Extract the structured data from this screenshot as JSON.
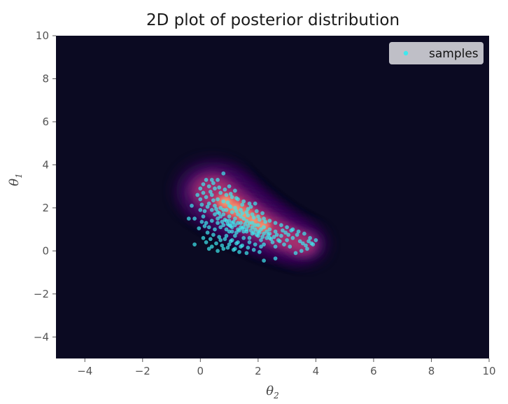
{
  "chart_data": {
    "type": "scatter",
    "title": "2D plot of posterior distribution",
    "xlabel": "θ",
    "xlabel_sub": "2",
    "ylabel": "θ",
    "ylabel_sub": "1",
    "xlim": [
      -5,
      10
    ],
    "ylim": [
      -5,
      10
    ],
    "xticks": [
      -4,
      -2,
      0,
      2,
      4,
      6,
      8,
      10
    ],
    "yticks": [
      -4,
      -2,
      0,
      2,
      4,
      6,
      8,
      10
    ],
    "xtick_labels": [
      "−4",
      "−2",
      "0",
      "2",
      "4",
      "6",
      "8",
      "10"
    ],
    "ytick_labels": [
      "−4",
      "−2",
      "0",
      "2",
      "4",
      "6",
      "8",
      "10"
    ],
    "grid": false,
    "legend_position": "top-right",
    "background_color": "#0b0a22",
    "series": [
      {
        "name": "samples",
        "color": "#3ee8ee",
        "points": [
          [
            0.2,
            3.3
          ],
          [
            0.4,
            3.3
          ],
          [
            0.6,
            3.3
          ],
          [
            0.8,
            3.6
          ],
          [
            1.0,
            3.0
          ],
          [
            1.2,
            2.8
          ],
          [
            0.3,
            3.0
          ],
          [
            0.5,
            2.9
          ],
          [
            0.1,
            2.7
          ],
          [
            0.7,
            2.7
          ],
          [
            0.9,
            2.6
          ],
          [
            1.1,
            2.5
          ],
          [
            1.3,
            2.4
          ],
          [
            1.5,
            2.3
          ],
          [
            1.7,
            2.2
          ],
          [
            1.9,
            2.2
          ],
          [
            0.0,
            2.4
          ],
          [
            0.2,
            2.5
          ],
          [
            0.4,
            2.6
          ],
          [
            0.6,
            2.4
          ],
          [
            0.8,
            2.3
          ],
          [
            1.0,
            2.1
          ],
          [
            1.2,
            2.0
          ],
          [
            1.4,
            1.9
          ],
          [
            1.6,
            1.8
          ],
          [
            1.8,
            1.7
          ],
          [
            2.0,
            1.6
          ],
          [
            2.2,
            1.5
          ],
          [
            2.4,
            1.4
          ],
          [
            2.6,
            1.3
          ],
          [
            2.8,
            1.2
          ],
          [
            3.0,
            1.1
          ],
          [
            3.2,
            1.0
          ],
          [
            3.4,
            0.9
          ],
          [
            3.6,
            0.8
          ],
          [
            3.8,
            0.6
          ],
          [
            4.0,
            0.5
          ],
          [
            3.9,
            0.3
          ],
          [
            3.7,
            0.1
          ],
          [
            3.5,
            0.0
          ],
          [
            3.3,
            -0.1
          ],
          [
            -0.3,
            2.1
          ],
          [
            -0.4,
            1.5
          ],
          [
            -0.2,
            1.5
          ],
          [
            0.0,
            1.9
          ],
          [
            0.1,
            1.6
          ],
          [
            0.2,
            1.3
          ],
          [
            0.3,
            1.1
          ],
          [
            0.5,
            1.0
          ],
          [
            0.6,
            1.3
          ],
          [
            0.7,
            1.6
          ],
          [
            0.8,
            1.9
          ],
          [
            0.9,
            1.4
          ],
          [
            1.0,
            1.2
          ],
          [
            1.1,
            0.9
          ],
          [
            1.2,
            0.7
          ],
          [
            1.3,
            1.0
          ],
          [
            1.4,
            1.3
          ],
          [
            1.5,
            1.1
          ],
          [
            1.6,
            0.9
          ],
          [
            1.7,
            0.6
          ],
          [
            1.8,
            0.8
          ],
          [
            1.9,
            1.0
          ],
          [
            2.0,
            0.7
          ],
          [
            2.1,
            0.5
          ],
          [
            2.2,
            0.3
          ],
          [
            2.3,
            0.6
          ],
          [
            2.4,
            0.8
          ],
          [
            2.5,
            0.4
          ],
          [
            2.6,
            0.2
          ],
          [
            2.7,
            0.5
          ],
          [
            2.8,
            0.7
          ],
          [
            2.9,
            0.3
          ],
          [
            3.0,
            0.5
          ],
          [
            3.1,
            0.2
          ],
          [
            3.2,
            0.6
          ],
          [
            0.1,
            0.6
          ],
          [
            0.2,
            0.4
          ],
          [
            0.4,
            0.2
          ],
          [
            0.6,
            0.0
          ],
          [
            0.8,
            0.1
          ],
          [
            1.0,
            0.3
          ],
          [
            1.2,
            0.1
          ],
          [
            1.4,
            0.2
          ],
          [
            1.6,
            -0.1
          ],
          [
            -0.2,
            0.3
          ],
          [
            0.3,
            0.1
          ],
          [
            2.2,
            -0.45
          ],
          [
            2.6,
            -0.35
          ],
          [
            0.7,
            0.5
          ],
          [
            0.9,
            0.7
          ],
          [
            1.1,
            0.5
          ],
          [
            1.3,
            0.4
          ],
          [
            1.5,
            0.6
          ],
          [
            1.7,
            0.4
          ],
          [
            1.9,
            0.3
          ],
          [
            2.1,
            0.2
          ],
          [
            0.4,
            1.9
          ],
          [
            0.6,
            1.8
          ],
          [
            0.8,
            1.7
          ],
          [
            1.0,
            1.6
          ],
          [
            1.2,
            1.5
          ],
          [
            1.4,
            1.6
          ],
          [
            1.6,
            1.4
          ],
          [
            1.8,
            1.3
          ],
          [
            2.0,
            1.2
          ],
          [
            2.2,
            1.1
          ],
          [
            2.4,
            1.0
          ],
          [
            2.6,
            0.9
          ],
          [
            0.3,
            2.2
          ],
          [
            0.5,
            2.1
          ],
          [
            0.7,
            2.0
          ],
          [
            0.9,
            1.9
          ],
          [
            1.1,
            1.8
          ],
          [
            1.3,
            1.7
          ],
          [
            1.5,
            1.5
          ],
          [
            1.7,
            1.3
          ],
          [
            1.9,
            1.2
          ],
          [
            2.1,
            1.0
          ],
          [
            2.3,
            0.9
          ],
          [
            0.9,
            1.0
          ],
          [
            1.0,
            0.9
          ],
          [
            1.1,
            1.1
          ],
          [
            1.2,
            1.2
          ],
          [
            1.3,
            1.3
          ],
          [
            1.4,
            1.1
          ],
          [
            1.5,
            0.9
          ],
          [
            1.6,
            1.0
          ],
          [
            1.0,
            1.4
          ],
          [
            1.1,
            1.3
          ],
          [
            0.8,
            1.2
          ],
          [
            0.7,
            1.1
          ],
          [
            0.6,
            1.5
          ],
          [
            0.5,
            1.7
          ],
          [
            0.4,
            1.4
          ],
          [
            1.8,
            1.1
          ],
          [
            2.0,
            0.9
          ],
          [
            2.2,
            0.8
          ],
          [
            2.4,
            0.6
          ],
          [
            1.25,
            0.85
          ],
          [
            1.35,
            0.95
          ],
          [
            1.45,
            1.05
          ],
          [
            1.05,
            1.15
          ],
          [
            0.95,
            1.25
          ],
          [
            0.85,
            1.45
          ],
          [
            1.15,
            1.35
          ],
          [
            1.55,
            1.25
          ],
          [
            1.65,
            1.15
          ],
          [
            0.75,
            1.35
          ],
          [
            0.65,
            1.75
          ],
          [
            0.55,
            1.95
          ],
          [
            0.45,
            2.35
          ],
          [
            0.35,
            2.75
          ],
          [
            0.25,
            2.05
          ],
          [
            0.15,
            1.85
          ],
          [
            0.05,
            2.15
          ],
          [
            1.75,
            0.95
          ],
          [
            1.85,
            0.85
          ],
          [
            1.95,
            0.75
          ],
          [
            2.05,
            0.85
          ],
          [
            2.15,
            0.65
          ],
          [
            2.35,
            0.75
          ],
          [
            2.45,
            0.55
          ],
          [
            2.55,
            0.65
          ],
          [
            2.65,
            0.75
          ],
          [
            2.75,
            0.45
          ],
          [
            2.85,
            0.95
          ],
          [
            2.95,
            0.85
          ],
          [
            3.05,
            0.75
          ],
          [
            3.15,
            0.95
          ],
          [
            3.35,
            0.75
          ],
          [
            3.45,
            0.45
          ],
          [
            3.55,
            0.35
          ],
          [
            3.65,
            0.25
          ],
          [
            3.75,
            0.45
          ],
          [
            3.85,
            0.35
          ],
          [
            0.95,
            2.25
          ],
          [
            1.05,
            2.05
          ],
          [
            1.25,
            1.85
          ],
          [
            1.45,
            1.75
          ],
          [
            1.65,
            1.65
          ],
          [
            1.85,
            1.55
          ],
          [
            2.05,
            1.45
          ],
          [
            2.25,
            1.35
          ],
          [
            0.25,
            0.85
          ],
          [
            0.45,
            0.75
          ],
          [
            0.65,
            0.65
          ],
          [
            0.85,
            0.55
          ],
          [
            1.05,
            0.45
          ],
          [
            1.25,
            0.35
          ],
          [
            1.45,
            0.25
          ],
          [
            1.65,
            0.15
          ],
          [
            1.85,
            0.05
          ],
          [
            2.05,
            -0.05
          ],
          [
            0.55,
            0.35
          ],
          [
            0.75,
            0.25
          ],
          [
            0.95,
            0.15
          ],
          [
            1.15,
            0.05
          ],
          [
            1.35,
            -0.05
          ],
          [
            0.35,
            0.55
          ],
          [
            0.15,
            1.15
          ],
          [
            0.05,
            1.35
          ],
          [
            -0.05,
            1.05
          ],
          [
            -0.1,
            2.6
          ],
          [
            0.0,
            2.9
          ],
          [
            0.1,
            3.1
          ],
          [
            0.45,
            3.15
          ],
          [
            0.65,
            2.95
          ],
          [
            0.85,
            2.85
          ],
          [
            1.05,
            2.65
          ],
          [
            1.25,
            2.45
          ],
          [
            1.45,
            2.15
          ],
          [
            1.65,
            1.95
          ],
          [
            1.75,
            2.05
          ],
          [
            1.95,
            1.85
          ],
          [
            2.15,
            1.75
          ]
        ]
      }
    ]
  }
}
